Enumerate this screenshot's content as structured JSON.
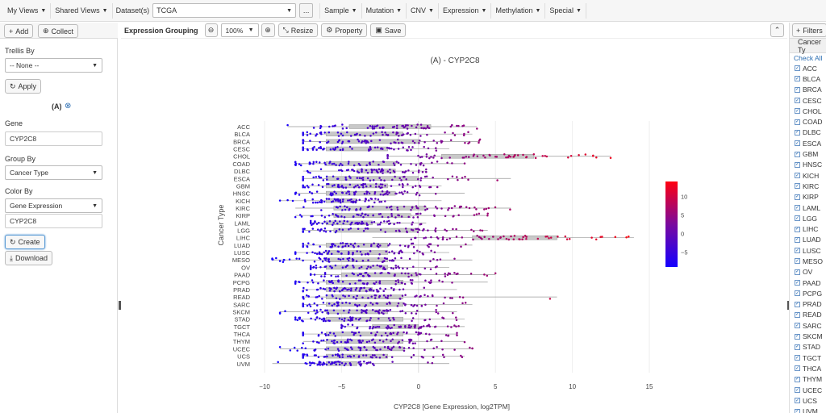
{
  "topbar": {
    "my_views": "My Views",
    "shared_views": "Shared Views",
    "datasets_label": "Dataset(s)",
    "dataset_value": "TCGA",
    "more": "...",
    "menus": [
      "Sample",
      "Mutation",
      "CNV",
      "Expression",
      "Methylation",
      "Special"
    ]
  },
  "left": {
    "add": "Add",
    "collect": "Collect",
    "trellis_label": "Trellis By",
    "trellis_value": "-- None --",
    "apply": "Apply",
    "panel_tag": "(A)",
    "gene_label": "Gene",
    "gene_value": "CYP2C8",
    "group_label": "Group By",
    "group_value": "Cancer Type",
    "color_label": "Color By",
    "color_value": "Gene Expression",
    "color_gene": "CYP2C8",
    "create": "Create",
    "download": "Download"
  },
  "toolbar": {
    "title": "Expression Grouping",
    "zoom": "100%",
    "resize": "Resize",
    "property": "Property",
    "save": "Save"
  },
  "right": {
    "filters": "Filters",
    "header": "Cancer Ty",
    "check_all": "Check All",
    "items": [
      "ACC",
      "BLCA",
      "BRCA",
      "CESC",
      "CHOL",
      "COAD",
      "DLBC",
      "ESCA",
      "GBM",
      "HNSC",
      "KICH",
      "KIRC",
      "KIRP",
      "LAML",
      "LGG",
      "LIHC",
      "LUAD",
      "LUSC",
      "MESO",
      "OV",
      "PAAD",
      "PCPG",
      "PRAD",
      "READ",
      "SARC",
      "SKCM",
      "STAD",
      "TGCT",
      "THCA",
      "THYM",
      "UCEC",
      "UCS",
      "UVM"
    ]
  },
  "colors": {
    "accent": "#2a6db2",
    "colorscale_low": "#1400ff",
    "colorscale_high": "#ff0010"
  },
  "chart_data": {
    "type": "scatter",
    "title": "(A) - CYP2C8",
    "xlabel": "CYP2C8 [Gene Expression, log2TPM]",
    "ylabel": "Cancer Type",
    "xlim": [
      -10.5,
      16
    ],
    "xticks": [
      "−10",
      "−5",
      "0",
      "5",
      "10",
      "15"
    ],
    "xtick_values": [
      -10,
      -5,
      0,
      5,
      10,
      15
    ],
    "categories": [
      "ACC",
      "BLCA",
      "BRCA",
      "CESC",
      "CHOL",
      "COAD",
      "DLBC",
      "ESCA",
      "GBM",
      "HNSC",
      "KICH",
      "KIRC",
      "KIRP",
      "LAML",
      "LGG",
      "LIHC",
      "LUAD",
      "LUSC",
      "MESO",
      "OV",
      "PAAD",
      "PCPG",
      "PRAD",
      "READ",
      "SARC",
      "SKCM",
      "STAD",
      "TGCT",
      "THCA",
      "THYM",
      "UCEC",
      "UCS",
      "UVM"
    ],
    "ranges": [
      [
        -8.5,
        3.8
      ],
      [
        -7.5,
        3.5
      ],
      [
        -7.5,
        4
      ],
      [
        -7.5,
        2
      ],
      [
        -2,
        12.5
      ],
      [
        -8,
        3
      ],
      [
        -7.5,
        0.5
      ],
      [
        -7.5,
        6
      ],
      [
        -7.5,
        1.5
      ],
      [
        -8,
        3
      ],
      [
        -9,
        1.5
      ],
      [
        -8,
        6
      ],
      [
        -8,
        4.5
      ],
      [
        -7,
        0.5
      ],
      [
        -7.5,
        4.5
      ],
      [
        -3,
        14
      ],
      [
        -7.5,
        3.5
      ],
      [
        -8,
        2
      ],
      [
        -9.5,
        3.5
      ],
      [
        -7,
        2
      ],
      [
        -7,
        5
      ],
      [
        -8,
        4.5
      ],
      [
        -7.5,
        2.5
      ],
      [
        -7.5,
        9
      ],
      [
        -7.5,
        3.5
      ],
      [
        -9,
        2.5
      ],
      [
        -8,
        3
      ],
      [
        -5,
        3
      ],
      [
        -7.5,
        2.5
      ],
      [
        -7.5,
        3
      ],
      [
        -9,
        3.5
      ],
      [
        -7.5,
        3
      ],
      [
        -9.5,
        2
      ]
    ],
    "boxes": [
      [
        -4.5,
        0.8
      ],
      [
        -6,
        -1
      ],
      [
        -6,
        0
      ],
      [
        -6,
        -2
      ],
      [
        1.5,
        7.5
      ],
      [
        -6,
        -1.5
      ],
      [
        -4,
        -1.5
      ],
      [
        -6,
        0
      ],
      [
        -6,
        -2
      ],
      [
        -6,
        -1.5
      ],
      [
        -6,
        -4
      ],
      [
        -5.5,
        0.5
      ],
      [
        -5.5,
        -0.5
      ],
      [
        -6,
        -3
      ],
      [
        -5.5,
        0
      ],
      [
        3.5,
        9
      ],
      [
        -6,
        -2
      ],
      [
        -6,
        -2
      ],
      [
        -6,
        -2
      ],
      [
        -6,
        -2
      ],
      [
        -5,
        0
      ],
      [
        -6,
        -1
      ],
      [
        -6,
        -3
      ],
      [
        -6,
        -1
      ],
      [
        -6,
        -1
      ],
      [
        -6,
        -2
      ],
      [
        -6,
        -1
      ],
      [
        -3,
        0
      ],
      [
        -6,
        -1
      ],
      [
        -6,
        -1
      ],
      [
        -6,
        -1
      ],
      [
        -6,
        -2
      ],
      [
        -6,
        -4
      ]
    ],
    "colorbar": {
      "ticks": [
        "10",
        "5",
        "0",
        "−5"
      ],
      "tick_values": [
        10,
        5,
        0,
        -5
      ],
      "range": [
        -9,
        14
      ]
    }
  }
}
